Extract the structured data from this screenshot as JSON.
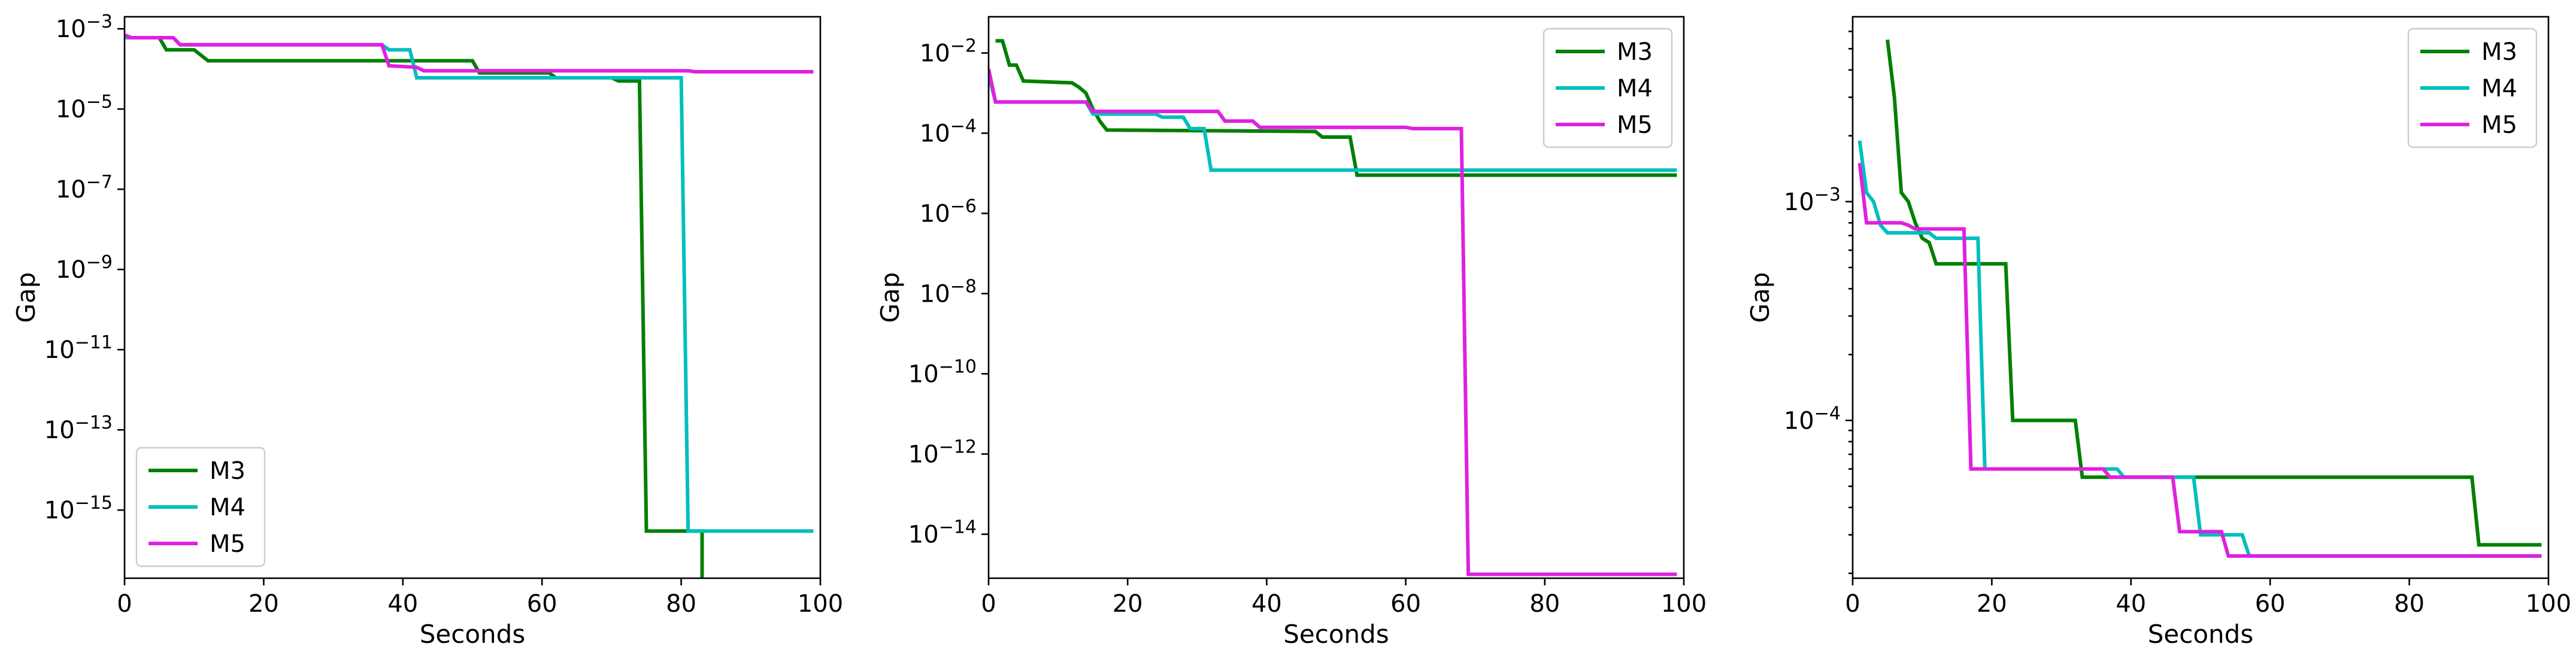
{
  "chart_data": [
    {
      "type": "line",
      "xlabel": "Seconds",
      "ylabel": "Gap",
      "xlim": [
        0,
        100
      ],
      "ylim": [
        2e-17,
        0.002
      ],
      "yscale": "log",
      "xticks": [
        0,
        20,
        40,
        60,
        80,
        100
      ],
      "yticks": [
        1e-15,
        1e-13,
        1e-11,
        1e-09,
        1e-07,
        1e-05,
        0.001
      ],
      "legend_position": "lower-left",
      "grid": false,
      "series": [
        {
          "name": "M3",
          "color": "#008000",
          "points": [
            [
              0,
              0.0006
            ],
            [
              5,
              0.0006
            ],
            [
              6,
              0.0003
            ],
            [
              10,
              0.0003
            ],
            [
              12,
              0.00016
            ],
            [
              50,
              0.00016
            ],
            [
              51,
              8e-05
            ],
            [
              61,
              8e-05
            ],
            [
              62,
              6e-05
            ],
            [
              70,
              6e-05
            ],
            [
              71,
              5e-05
            ],
            [
              74,
              5e-05
            ],
            [
              75,
              3e-16
            ],
            [
              83,
              3e-16
            ],
            [
              83,
              2e-17
            ]
          ]
        },
        {
          "name": "M4",
          "color": "#00BFBF",
          "points": [
            [
              0,
              0.0006
            ],
            [
              7,
              0.0006
            ],
            [
              8,
              0.0004
            ],
            [
              37,
              0.0004
            ],
            [
              38,
              0.0003
            ],
            [
              41,
              0.0003
            ],
            [
              42,
              6e-05
            ],
            [
              80,
              6e-05
            ],
            [
              81,
              3e-16
            ],
            [
              99,
              3e-16
            ]
          ]
        },
        {
          "name": "M5",
          "color": "#E020E0",
          "points": [
            [
              0,
              0.0007
            ],
            [
              1,
              0.0006
            ],
            [
              7,
              0.0006
            ],
            [
              8,
              0.0004
            ],
            [
              37,
              0.0004
            ],
            [
              38,
              0.00012
            ],
            [
              42,
              0.00011
            ],
            [
              43,
              9e-05
            ],
            [
              81,
              9e-05
            ],
            [
              82,
              8.5e-05
            ],
            [
              99,
              8.5e-05
            ]
          ]
        }
      ]
    },
    {
      "type": "line",
      "xlabel": "Seconds",
      "ylabel": "Gap",
      "xlim": [
        0,
        100
      ],
      "ylim": [
        8e-16,
        0.08
      ],
      "yscale": "log",
      "xticks": [
        0,
        20,
        40,
        60,
        80,
        100
      ],
      "yticks": [
        1e-14,
        1e-12,
        1e-10,
        1e-08,
        1e-06,
        0.0001,
        0.01
      ],
      "legend_position": "upper-right",
      "grid": false,
      "series": [
        {
          "name": "M3",
          "color": "#008000",
          "points": [
            [
              1,
              0.02
            ],
            [
              2,
              0.02
            ],
            [
              3,
              0.005
            ],
            [
              4,
              0.005
            ],
            [
              5,
              0.002
            ],
            [
              12,
              0.0018
            ],
            [
              13,
              0.0014
            ],
            [
              14,
              0.001
            ],
            [
              15,
              0.0004
            ],
            [
              16,
              0.0002
            ],
            [
              17,
              0.00012
            ],
            [
              47,
              0.00011
            ],
            [
              48,
              8e-05
            ],
            [
              52,
              8e-05
            ],
            [
              53,
              9e-06
            ],
            [
              99,
              9e-06
            ]
          ]
        },
        {
          "name": "M4",
          "color": "#00BFBF",
          "points": [
            [
              0,
              0.0028
            ],
            [
              1,
              0.0006
            ],
            [
              14,
              0.0006
            ],
            [
              15,
              0.0003
            ],
            [
              24,
              0.0003
            ],
            [
              25,
              0.00025
            ],
            [
              28,
              0.00025
            ],
            [
              29,
              0.00013
            ],
            [
              31,
              0.00013
            ],
            [
              32,
              1.2e-05
            ],
            [
              99,
              1.2e-05
            ]
          ]
        },
        {
          "name": "M5",
          "color": "#E020E0",
          "points": [
            [
              0,
              0.004
            ],
            [
              1,
              0.0006
            ],
            [
              14,
              0.0006
            ],
            [
              15,
              0.00035
            ],
            [
              33,
              0.00035
            ],
            [
              34,
              0.0002
            ],
            [
              38,
              0.0002
            ],
            [
              39,
              0.00014
            ],
            [
              60,
              0.00014
            ],
            [
              61,
              0.00013
            ],
            [
              68,
              0.00013
            ],
            [
              69,
              1e-15
            ],
            [
              99,
              1e-15
            ]
          ]
        }
      ]
    },
    {
      "type": "line",
      "xlabel": "Seconds",
      "ylabel": "Gap",
      "xlim": [
        0,
        100
      ],
      "ylim": [
        1.9e-05,
        0.007
      ],
      "yscale": "log",
      "xticks": [
        0,
        20,
        40,
        60,
        80,
        100
      ],
      "yticks": [
        0.0001,
        0.001
      ],
      "legend_position": "upper-right",
      "grid": false,
      "series": [
        {
          "name": "M3",
          "color": "#008000",
          "points": [
            [
              5,
              0.0055
            ],
            [
              6,
              0.003
            ],
            [
              7,
              0.0011
            ],
            [
              8,
              0.001
            ],
            [
              9,
              0.0008
            ],
            [
              10,
              0.00068
            ],
            [
              11,
              0.00065
            ],
            [
              12,
              0.00052
            ],
            [
              22,
              0.00052
            ],
            [
              23,
              0.0001
            ],
            [
              32,
              0.0001
            ],
            [
              33,
              5.5e-05
            ],
            [
              89,
              5.5e-05
            ],
            [
              90,
              2.7e-05
            ],
            [
              99,
              2.7e-05
            ]
          ]
        },
        {
          "name": "M4",
          "color": "#00BFBF",
          "points": [
            [
              1,
              0.0019
            ],
            [
              2,
              0.0011
            ],
            [
              3,
              0.001
            ],
            [
              4,
              0.00078
            ],
            [
              5,
              0.00072
            ],
            [
              11,
              0.00072
            ],
            [
              12,
              0.00068
            ],
            [
              18,
              0.00068
            ],
            [
              19,
              6e-05
            ],
            [
              36,
              6e-05
            ],
            [
              38,
              6e-05
            ],
            [
              39,
              5.5e-05
            ],
            [
              49,
              5.5e-05
            ],
            [
              50,
              3e-05
            ],
            [
              56,
              3e-05
            ],
            [
              57,
              2.4e-05
            ],
            [
              99,
              2.4e-05
            ]
          ]
        },
        {
          "name": "M5",
          "color": "#E020E0",
          "points": [
            [
              1,
              0.0015
            ],
            [
              2,
              0.0008
            ],
            [
              7,
              0.0008
            ],
            [
              8,
              0.00078
            ],
            [
              9,
              0.00075
            ],
            [
              16,
              0.00075
            ],
            [
              17,
              6e-05
            ],
            [
              36,
              6e-05
            ],
            [
              37,
              5.5e-05
            ],
            [
              46,
              5.5e-05
            ],
            [
              47,
              3.1e-05
            ],
            [
              53,
              3.1e-05
            ],
            [
              54,
              2.4e-05
            ],
            [
              99,
              2.4e-05
            ]
          ]
        }
      ]
    }
  ]
}
